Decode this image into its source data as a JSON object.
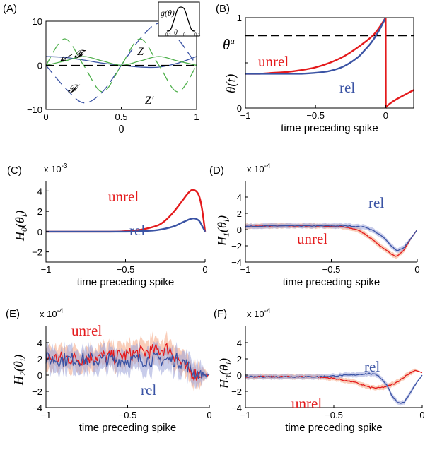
{
  "colors": {
    "red": "#e41a1c",
    "blue": "#3a53a4",
    "green": "#4daf4a",
    "black": "#000000",
    "red_band": "#f4a582",
    "blue_band": "#9aa3d8"
  },
  "chart_data": [
    {
      "id": "A",
      "panel_label": "(A)",
      "type": "line",
      "xlabel": "θ",
      "ylabel": "",
      "xlim": [
        0,
        1
      ],
      "ylim": [
        -10,
        10
      ],
      "xticks": [
        "0",
        "0.5",
        "1"
      ],
      "yticks": [
        "−10",
        "0",
        "10"
      ],
      "series": [
        {
          "name": "𝓕",
          "color": "#3a53a4",
          "style": "solid",
          "x": [
            0,
            0.125,
            0.25,
            0.375,
            0.5,
            0.625,
            0.75,
            0.875,
            1
          ],
          "y": [
            2,
            1.8,
            1.2,
            0.5,
            0,
            -0.4,
            -0.4,
            0.5,
            2
          ]
        },
        {
          "name": "𝓕′",
          "color": "#3a53a4",
          "style": "dashed",
          "x": [
            0,
            0.125,
            0.25,
            0.375,
            0.5,
            0.625,
            0.75,
            0.875,
            1
          ],
          "y": [
            0,
            -5,
            -8.5,
            -6,
            0,
            6,
            9.5,
            6,
            0
          ]
        },
        {
          "name": "Z",
          "color": "#4daf4a",
          "style": "solid",
          "x": [
            0,
            0.125,
            0.25,
            0.375,
            0.5,
            0.625,
            0.75,
            0.875,
            1
          ],
          "y": [
            0,
            1,
            2,
            1,
            0,
            1,
            2,
            1,
            0
          ]
        },
        {
          "name": "Z′",
          "color": "#4daf4a",
          "style": "dashed",
          "x": [
            0,
            0.125,
            0.25,
            0.375,
            0.5,
            0.625,
            0.75,
            0.875,
            1
          ],
          "y": [
            0,
            6,
            0,
            -6,
            0,
            6,
            0,
            -6,
            0
          ]
        },
        {
          "name": "",
          "color": "#000000",
          "style": "dashed",
          "x": [
            0,
            1
          ],
          "y": [
            0,
            0
          ]
        }
      ],
      "inset": {
        "label": "g(θ)",
        "xticks": [
          "-0.1",
          "0",
          "0.1"
        ],
        "xlabel": "θ",
        "x": [
          -0.1,
          -0.075,
          -0.05,
          -0.025,
          0,
          0.025,
          0.05,
          0.075,
          0.1
        ],
        "y": [
          0,
          0.05,
          0.45,
          0.9,
          1,
          0.9,
          0.45,
          0.05,
          0
        ]
      }
    },
    {
      "id": "B",
      "panel_label": "(B)",
      "type": "line",
      "xlabel": "time preceding spike",
      "ylabel": "θ(t)",
      "xlim": [
        -1,
        0.2
      ],
      "ylim": [
        0,
        1
      ],
      "xticks": [
        "−1",
        "−0.5",
        "0"
      ],
      "yticks": [
        "0",
        "0.5",
        "1"
      ],
      "threshold_label": "θ",
      "threshold_sup": "u",
      "threshold": 0.8,
      "series": [
        {
          "name": "unrel",
          "color": "#e41a1c",
          "x": [
            -1,
            -0.9,
            -0.8,
            -0.7,
            -0.6,
            -0.5,
            -0.4,
            -0.3,
            -0.2,
            -0.1,
            -0.05,
            0
          ],
          "y": [
            0.38,
            0.38,
            0.39,
            0.4,
            0.42,
            0.45,
            0.5,
            0.57,
            0.67,
            0.79,
            0.88,
            1.0
          ]
        },
        {
          "name": "rel",
          "color": "#3a53a4",
          "x": [
            -1,
            -0.8,
            -0.6,
            -0.5,
            -0.4,
            -0.3,
            -0.2,
            -0.15,
            -0.1,
            -0.05,
            0
          ],
          "y": [
            0.38,
            0.38,
            0.38,
            0.39,
            0.41,
            0.46,
            0.56,
            0.64,
            0.73,
            0.85,
            1.0
          ]
        },
        {
          "name": "",
          "color": "#e41a1c",
          "x": [
            0,
            0.001,
            0.03,
            0.08,
            0.14,
            0.2
          ],
          "y": [
            1.0,
            0.01,
            0.05,
            0.1,
            0.15,
            0.2
          ]
        }
      ]
    },
    {
      "id": "C",
      "panel_label": "(C)",
      "type": "line",
      "exponent": "x 10",
      "exponent_power": "-3",
      "xlabel": "time preceding spike",
      "ylabel": "H0(θi)",
      "xlim": [
        -1,
        0
      ],
      "ylim": [
        -3,
        5
      ],
      "xticks": [
        "−1",
        "−0.5",
        "0"
      ],
      "yticks": [
        "−2",
        "0",
        "2",
        "4"
      ],
      "series": [
        {
          "name": "unrel",
          "color": "#e41a1c",
          "x": [
            -1,
            -0.6,
            -0.5,
            -0.4,
            -0.3,
            -0.25,
            -0.2,
            -0.15,
            -0.1,
            -0.07,
            -0.04,
            -0.02,
            0
          ],
          "y": [
            0,
            0,
            0.05,
            0.2,
            0.6,
            1.1,
            1.9,
            2.9,
            3.9,
            4.1,
            3.6,
            2.3,
            0
          ]
        },
        {
          "name": "rel",
          "color": "#3a53a4",
          "x": [
            -1,
            -0.5,
            -0.4,
            -0.3,
            -0.2,
            -0.15,
            -0.1,
            -0.07,
            -0.04,
            -0.02,
            0
          ],
          "y": [
            0,
            0,
            0.05,
            0.15,
            0.5,
            0.85,
            1.2,
            1.3,
            1.1,
            0.6,
            0
          ]
        }
      ]
    },
    {
      "id": "D",
      "panel_label": "(D)",
      "type": "line",
      "exponent": "x 10",
      "exponent_power": "-4",
      "xlabel": "time preceding spike",
      "ylabel": "H1(θi)",
      "xlim": [
        -1,
        0
      ],
      "ylim": [
        -4,
        6
      ],
      "xticks": [
        "−1",
        "−0.5",
        "0"
      ],
      "yticks": [
        "−4",
        "−2",
        "0",
        "2",
        "4"
      ],
      "series": [
        {
          "name": "unrel",
          "color": "#e41a1c",
          "x": [
            -1,
            -0.8,
            -0.6,
            -0.45,
            -0.35,
            -0.3,
            -0.25,
            -0.2,
            -0.15,
            -0.12,
            -0.08,
            -0.04,
            0
          ],
          "y": [
            0.4,
            0.45,
            0.45,
            0.4,
            0,
            -0.6,
            -1.4,
            -2.3,
            -3.0,
            -3.3,
            -2.6,
            -1.2,
            0
          ]
        },
        {
          "name": "rel",
          "color": "#3a53a4",
          "x": [
            -1,
            -0.8,
            -0.6,
            -0.4,
            -0.3,
            -0.25,
            -0.2,
            -0.15,
            -0.12,
            -0.08,
            -0.04,
            0
          ],
          "y": [
            0.4,
            0.45,
            0.45,
            0.45,
            0.3,
            -0.2,
            -0.9,
            -2.0,
            -2.6,
            -2.3,
            -1.2,
            0
          ]
        }
      ]
    },
    {
      "id": "E",
      "panel_label": "(E)",
      "type": "line",
      "exponent": "x 10",
      "exponent_power": "-4",
      "xlabel": "time preceding spike",
      "ylabel": "H2(θi)",
      "xlim": [
        -1,
        0
      ],
      "ylim": [
        -4,
        6
      ],
      "xticks": [
        "−1",
        "−0.5",
        "0"
      ],
      "yticks": [
        "−4",
        "−2",
        "0",
        "2",
        "4"
      ],
      "series": [
        {
          "name": "unrel",
          "color": "#e41a1c",
          "x": [
            -1,
            -0.9,
            -0.8,
            -0.7,
            -0.6,
            -0.5,
            -0.4,
            -0.3,
            -0.25,
            -0.2,
            -0.15,
            -0.1,
            -0.05,
            0
          ],
          "y": [
            2.0,
            2.1,
            2.0,
            2.3,
            2.2,
            2.5,
            2.8,
            3.1,
            3.3,
            2.2,
            0.9,
            0.2,
            0.05,
            0
          ]
        },
        {
          "name": "rel",
          "color": "#3a53a4",
          "x": [
            -1,
            -0.9,
            -0.8,
            -0.7,
            -0.6,
            -0.5,
            -0.4,
            -0.3,
            -0.2,
            -0.15,
            -0.1,
            -0.05,
            0
          ],
          "y": [
            2.0,
            1.9,
            2.0,
            1.8,
            1.9,
            1.8,
            1.9,
            1.9,
            1.9,
            1.5,
            0.5,
            0.05,
            0
          ]
        }
      ]
    },
    {
      "id": "F",
      "panel_label": "(F)",
      "type": "line",
      "exponent": "x 10",
      "exponent_power": "-4",
      "xlabel": "time preceding spike",
      "ylabel": "H3(θi)",
      "xlim": [
        -1,
        0
      ],
      "ylim": [
        -4,
        6
      ],
      "xticks": [
        "−1",
        "−0.5",
        "0"
      ],
      "yticks": [
        "−4",
        "−2",
        "0",
        "2",
        "4"
      ],
      "series": [
        {
          "name": "unrel",
          "color": "#e41a1c",
          "x": [
            -1,
            -0.8,
            -0.6,
            -0.5,
            -0.4,
            -0.35,
            -0.3,
            -0.25,
            -0.2,
            -0.15,
            -0.12,
            -0.08,
            -0.04,
            0
          ],
          "y": [
            -0.2,
            -0.2,
            -0.2,
            -0.4,
            -0.8,
            -1.1,
            -1.5,
            -1.6,
            -1.4,
            -1.0,
            -0.5,
            0.1,
            0.6,
            0.3
          ]
        },
        {
          "name": "rel",
          "color": "#3a53a4",
          "x": [
            -1,
            -0.8,
            -0.6,
            -0.4,
            -0.3,
            -0.25,
            -0.2,
            -0.17,
            -0.13,
            -0.1,
            -0.07,
            -0.04,
            0
          ],
          "y": [
            -0.2,
            -0.2,
            -0.2,
            0,
            0.2,
            0,
            -1.2,
            -2.6,
            -3.5,
            -3.3,
            -2.3,
            -1.2,
            0
          ]
        }
      ]
    }
  ]
}
